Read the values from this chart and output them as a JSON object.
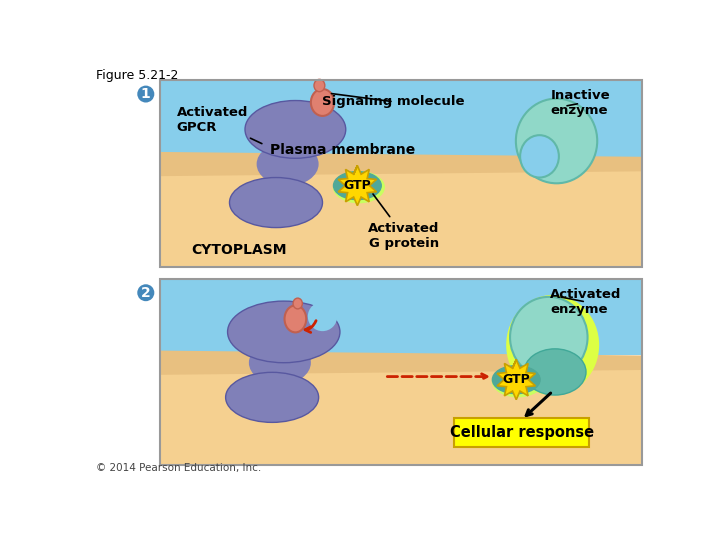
{
  "figure_title": "Figure 5.21-2",
  "copyright": "© 2014 Pearson Education, Inc.",
  "colors": {
    "white": "#ffffff",
    "sky_blue": "#87CEEB",
    "membrane_tan": "#E8C080",
    "membrane_orange": "#D4956A",
    "cytoplasm_tan": "#F5D090",
    "gpcr_purple": "#8080B8",
    "gpcr_edge": "#5858A0",
    "enzyme_teal_light": "#90D8C8",
    "enzyme_teal_mid": "#60B8A8",
    "enzyme_teal_dark": "#40A898",
    "signal_salmon": "#E08070",
    "signal_edge": "#C06050",
    "gtp_yellow": "#FFE000",
    "gtp_star": "#FFD700",
    "gtp_edge": "#C8A000",
    "gtp_teal_bg": "#50A898",
    "gtp_glow": "#C8FF60",
    "red_arrow": "#CC2200",
    "black": "#000000",
    "circle_blue": "#4488BB",
    "panel_border": "#999999",
    "yellow_box": "#FFFF00",
    "yellow_glow": "#DDFF44"
  },
  "labels": {
    "activated_gpcr": "Activated\nGPCR",
    "signaling_molecule": "Signaling molecule",
    "inactive_enzyme": "Inactive\nenzyme",
    "plasma_membrane": "Plasma membrane",
    "activated_g_protein": "Activated\nG protein",
    "cytoplasm": "CYTOPLASM",
    "activated_enzyme": "Activated\nenzyme",
    "cellular_response": "Cellular response",
    "gtp": "GTP"
  }
}
